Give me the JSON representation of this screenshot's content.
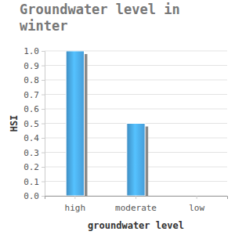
{
  "chart_data": {
    "type": "bar",
    "title": "Groundwater level in winter",
    "x_label": "groundwater level",
    "y_label": "HSI",
    "categories": [
      "high",
      "moderate",
      "low"
    ],
    "values": [
      1.0,
      0.5,
      0
    ],
    "color": "#4aa8e8",
    "ylim": [
      0,
      1
    ],
    "yticks": [
      {
        "value": 0,
        "label": "0.0"
      },
      0.1,
      0.2,
      0.3,
      0.4,
      0.5,
      0.6,
      0.7,
      0.8,
      0.9,
      {
        "value": 1,
        "label": "1.0"
      }
    ],
    "grid": true
  }
}
